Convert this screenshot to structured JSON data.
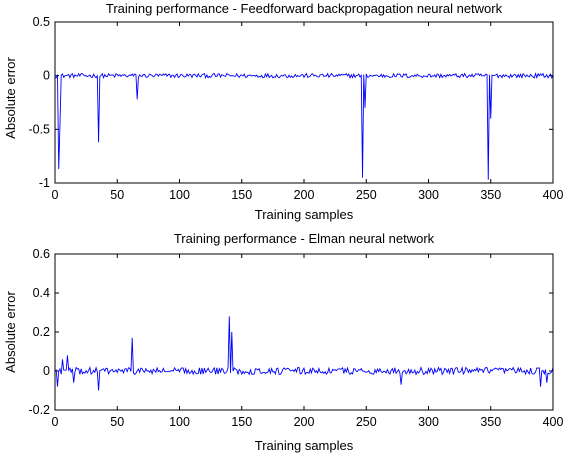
{
  "chart_data": [
    {
      "type": "line",
      "title": "Training performance - Feedforward backpropagation neural network",
      "xlabel": "Training samples",
      "ylabel": "Absolute error",
      "xlim": [
        0,
        400
      ],
      "ylim": [
        -1,
        0.5
      ],
      "xticks": [
        0,
        50,
        100,
        150,
        200,
        250,
        300,
        350,
        400
      ],
      "yticks": [
        -1,
        -0.5,
        0,
        0.5
      ],
      "xtick_labels": [
        "0",
        "50",
        "100",
        "150",
        "200",
        "250",
        "300",
        "350",
        "400"
      ],
      "ytick_labels": [
        "-1",
        "-0.5",
        "0",
        "0.5"
      ],
      "line_color": "#0000ff",
      "grid": false,
      "noise_amplitude": 0.02,
      "spikes": [
        {
          "x": 3,
          "y": -0.87
        },
        {
          "x": 4,
          "y": -0.45
        },
        {
          "x": 35,
          "y": -0.62
        },
        {
          "x": 66,
          "y": -0.22
        },
        {
          "x": 247,
          "y": -0.95
        },
        {
          "x": 249,
          "y": -0.3
        },
        {
          "x": 348,
          "y": -0.97
        },
        {
          "x": 350,
          "y": -0.4
        }
      ]
    },
    {
      "type": "line",
      "title": "Training performance - Elman neural network",
      "xlabel": "Training samples",
      "ylabel": "Absolute error",
      "xlim": [
        0,
        400
      ],
      "ylim": [
        -0.2,
        0.6
      ],
      "xticks": [
        0,
        50,
        100,
        150,
        200,
        250,
        300,
        350,
        400
      ],
      "yticks": [
        -0.2,
        0,
        0.2,
        0.4,
        0.6
      ],
      "xtick_labels": [
        "0",
        "50",
        "100",
        "150",
        "200",
        "250",
        "300",
        "350",
        "400"
      ],
      "ytick_labels": [
        "-0.2",
        "0",
        "0.2",
        "0.4",
        "0.6"
      ],
      "line_color": "#0000ff",
      "grid": false,
      "noise_amplitude": 0.018,
      "spikes": [
        {
          "x": 2,
          "y": -0.08
        },
        {
          "x": 6,
          "y": 0.06
        },
        {
          "x": 10,
          "y": 0.08
        },
        {
          "x": 15,
          "y": -0.06
        },
        {
          "x": 35,
          "y": -0.1
        },
        {
          "x": 62,
          "y": 0.17
        },
        {
          "x": 140,
          "y": 0.28
        },
        {
          "x": 142,
          "y": 0.2
        },
        {
          "x": 278,
          "y": -0.07
        },
        {
          "x": 390,
          "y": -0.08
        },
        {
          "x": 395,
          "y": -0.06
        }
      ]
    }
  ]
}
